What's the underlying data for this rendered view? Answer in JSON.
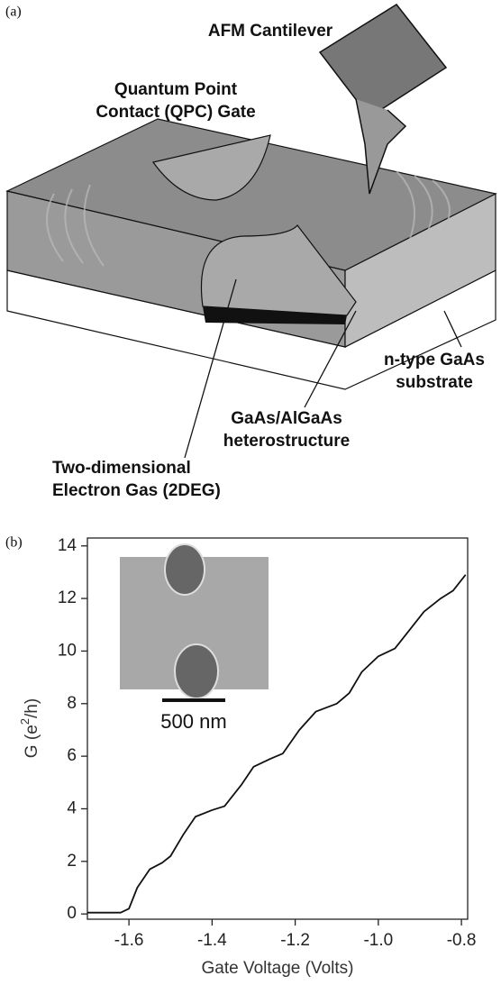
{
  "diagram": {
    "panel_label": "(a)",
    "labels": [
      {
        "lines": [
          "AFM Cantilever"
        ]
      },
      {
        "lines": [
          "Quantum Point",
          "Contact (QPC) Gate"
        ]
      },
      {
        "lines": [
          "n-type GaAs",
          "substrate"
        ]
      },
      {
        "lines": [
          "GaAs/AlGaAs",
          "heterostructure"
        ]
      },
      {
        "lines": [
          "Two-dimensional",
          "Electron Gas (2DEG)"
        ]
      }
    ]
  },
  "chart_data": {
    "type": "line",
    "panel_label": "(b)",
    "x_label": "Gate Voltage (Volts)",
    "y_label": {
      "prefix": "G (e",
      "sup": "2",
      "suffix": "/h)"
    },
    "inset_label": "500 nm",
    "x": [
      -1.7,
      -1.62,
      -1.6,
      -1.58,
      -1.55,
      -1.52,
      -1.5,
      -1.47,
      -1.44,
      -1.4,
      -1.37,
      -1.33,
      -1.3,
      -1.26,
      -1.23,
      -1.19,
      -1.15,
      -1.1,
      -1.07,
      -1.04,
      -1.0,
      -0.96,
      -0.93,
      -0.89,
      -0.85,
      -0.82,
      -0.79
    ],
    "values": [
      0.05,
      0.05,
      0.2,
      1.0,
      1.7,
      1.95,
      2.2,
      3.0,
      3.7,
      3.95,
      4.1,
      4.9,
      5.6,
      5.9,
      6.1,
      7.0,
      7.7,
      8.0,
      8.4,
      9.2,
      9.8,
      10.1,
      10.7,
      11.5,
      12.0,
      12.3,
      12.9
    ],
    "color": "#111111",
    "xlim": [
      -1.7,
      -0.785
    ],
    "ylim": [
      -0.2,
      14.3
    ],
    "xticks": [
      -1.6,
      -1.4,
      -1.2,
      {
        "value": -1,
        "label": "-1.0"
      },
      -0.8
    ],
    "yticks": [
      0,
      2,
      4,
      6,
      8,
      10,
      12,
      14
    ]
  }
}
